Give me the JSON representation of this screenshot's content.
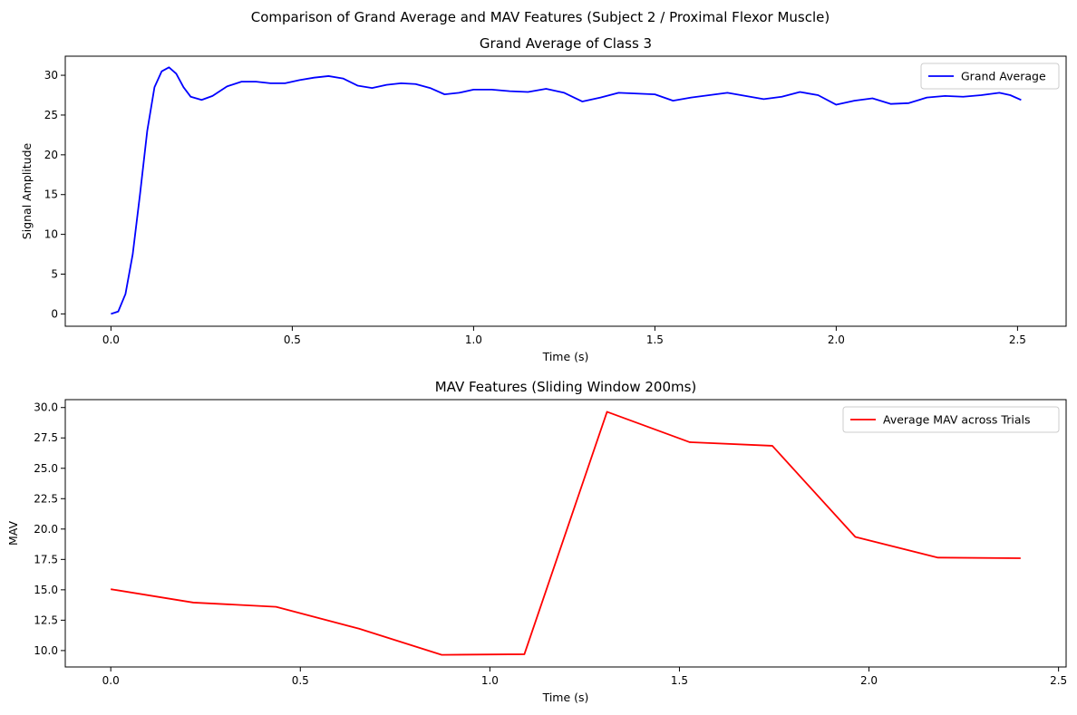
{
  "figure": {
    "suptitle": "Comparison of Grand Average and MAV Features (Subject 2 / Proximal Flexor Muscle)"
  },
  "chart_data": [
    {
      "type": "line",
      "title": "Grand Average of Class 3",
      "xlabel": "Time (s)",
      "ylabel": "Signal Amplitude",
      "xlim": [
        -0.126,
        2.634
      ],
      "ylim": [
        -1.55,
        32.4
      ],
      "xticks": [
        0.0,
        0.5,
        1.0,
        1.5,
        2.0,
        2.5
      ],
      "xtick_labels": [
        "0.0",
        "0.5",
        "1.0",
        "1.5",
        "2.0",
        "2.5"
      ],
      "yticks": [
        0,
        5,
        10,
        15,
        20,
        25,
        30
      ],
      "ytick_labels": [
        "0",
        "5",
        "10",
        "15",
        "20",
        "25",
        "30"
      ],
      "grid": false,
      "legend": "upper right",
      "series": [
        {
          "name": "Grand Average",
          "color": "#0000ff",
          "x": [
            0.0,
            0.02,
            0.04,
            0.06,
            0.08,
            0.1,
            0.12,
            0.14,
            0.16,
            0.18,
            0.2,
            0.22,
            0.25,
            0.28,
            0.32,
            0.36,
            0.4,
            0.44,
            0.48,
            0.52,
            0.56,
            0.6,
            0.64,
            0.68,
            0.72,
            0.76,
            0.8,
            0.84,
            0.88,
            0.92,
            0.96,
            1.0,
            1.05,
            1.1,
            1.15,
            1.2,
            1.25,
            1.3,
            1.35,
            1.4,
            1.45,
            1.5,
            1.55,
            1.6,
            1.65,
            1.7,
            1.75,
            1.8,
            1.85,
            1.9,
            1.95,
            2.0,
            2.05,
            2.1,
            2.15,
            2.2,
            2.25,
            2.3,
            2.35,
            2.4,
            2.45,
            2.48,
            2.51
          ],
          "values": [
            0.0,
            0.3,
            2.5,
            7.5,
            15.0,
            23.0,
            28.5,
            30.5,
            31.0,
            30.2,
            28.5,
            27.3,
            26.9,
            27.4,
            28.6,
            29.2,
            29.2,
            29.0,
            29.0,
            29.4,
            29.7,
            29.9,
            29.6,
            28.7,
            28.4,
            28.8,
            29.0,
            28.9,
            28.4,
            27.6,
            27.8,
            28.2,
            28.2,
            28.0,
            27.9,
            28.3,
            27.8,
            26.7,
            27.2,
            27.8,
            27.7,
            27.6,
            26.8,
            27.2,
            27.5,
            27.8,
            27.4,
            27.0,
            27.3,
            27.9,
            27.5,
            26.3,
            26.8,
            27.1,
            26.4,
            26.5,
            27.2,
            27.4,
            27.3,
            27.5,
            27.8,
            27.5,
            26.9
          ]
        }
      ]
    },
    {
      "type": "line",
      "title": "MAV Features (Sliding Window 200ms)",
      "xlabel": "Time (s)",
      "ylabel": "MAV",
      "xlim": [
        -0.12,
        2.52
      ],
      "ylim": [
        8.65,
        30.65
      ],
      "xticks": [
        0.0,
        0.5,
        1.0,
        1.5,
        2.0,
        2.5
      ],
      "xtick_labels": [
        "0.0",
        "0.5",
        "1.0",
        "1.5",
        "2.0",
        "2.5"
      ],
      "yticks": [
        10.0,
        12.5,
        15.0,
        17.5,
        20.0,
        22.5,
        25.0,
        27.5,
        30.0
      ],
      "ytick_labels": [
        "10.0",
        "12.5",
        "15.0",
        "17.5",
        "20.0",
        "22.5",
        "25.0",
        "27.5",
        "30.0"
      ],
      "grid": false,
      "legend": "upper right",
      "series": [
        {
          "name": "Average MAV across Trials",
          "color": "#ff0000",
          "x": [
            0.0,
            0.218,
            0.436,
            0.655,
            0.873,
            1.091,
            1.309,
            1.527,
            1.745,
            1.964,
            2.182,
            2.4
          ],
          "values": [
            15.05,
            13.95,
            13.6,
            11.8,
            9.65,
            9.7,
            29.65,
            27.15,
            26.85,
            19.35,
            17.65,
            17.6
          ]
        }
      ]
    }
  ]
}
